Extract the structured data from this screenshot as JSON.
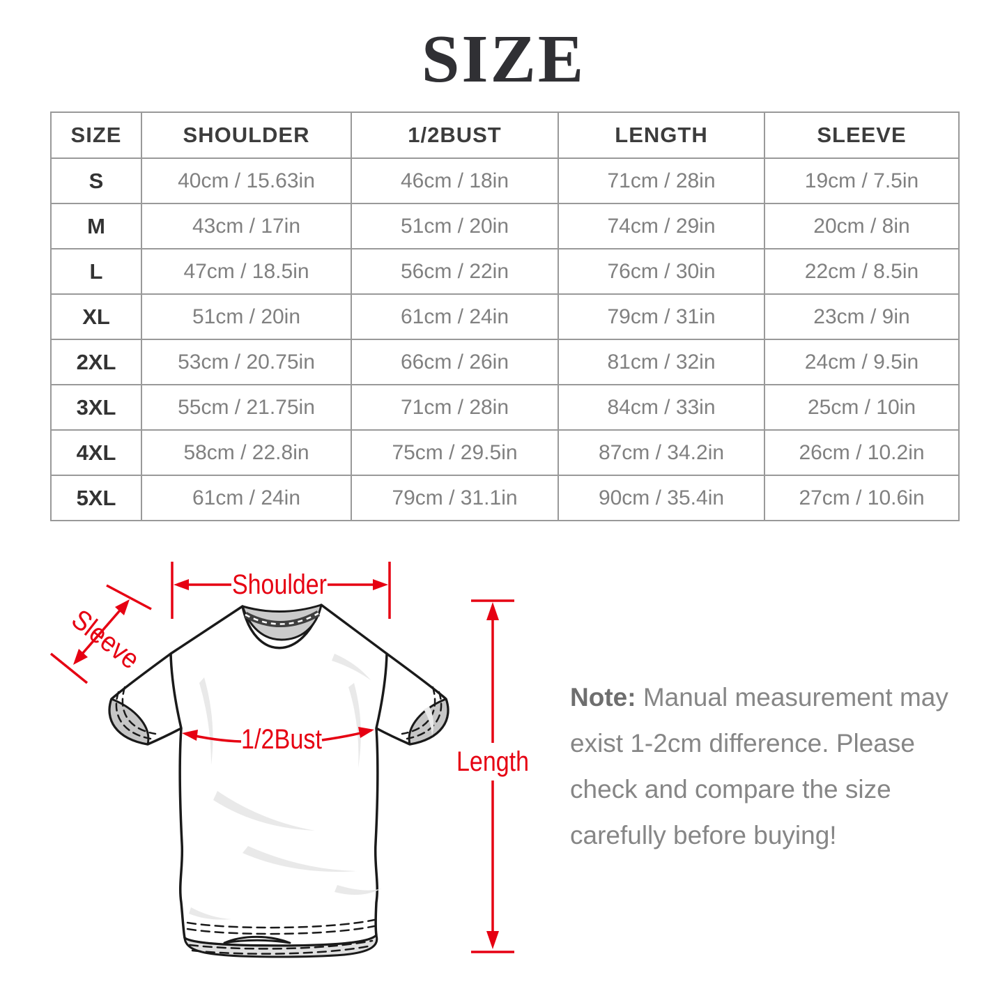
{
  "page": {
    "title": "SIZE"
  },
  "table": {
    "headers": [
      "SIZE",
      "SHOULDER",
      "1/2BUST",
      "LENGTH",
      "SLEEVE"
    ],
    "rows": [
      [
        "S",
        "40cm / 15.63in",
        "46cm / 18in",
        "71cm / 28in",
        "19cm / 7.5in"
      ],
      [
        "M",
        "43cm / 17in",
        "51cm / 20in",
        "74cm / 29in",
        "20cm / 8in"
      ],
      [
        "L",
        "47cm / 18.5in",
        "56cm / 22in",
        "76cm / 30in",
        "22cm / 8.5in"
      ],
      [
        "XL",
        "51cm / 20in",
        "61cm / 24in",
        "79cm / 31in",
        "23cm / 9in"
      ],
      [
        "2XL",
        "53cm / 20.75in",
        "66cm / 26in",
        "81cm / 32in",
        "24cm / 9.5in"
      ],
      [
        "3XL",
        "55cm / 21.75in",
        "71cm / 28in",
        "84cm / 33in",
        "25cm / 10in"
      ],
      [
        "4XL",
        "58cm / 22.8in",
        "75cm / 29.5in",
        "87cm / 34.2in",
        "26cm / 10.2in"
      ],
      [
        "5XL",
        "61cm / 24in",
        "79cm / 31.1in",
        "90cm / 35.4in",
        "27cm / 10.6in"
      ]
    ]
  },
  "diagram": {
    "labels": {
      "shoulder": "Shoulder",
      "sleeve": "Sleeve",
      "bust": "1/2Bust",
      "length": "Length"
    },
    "accent_color": "#e60012"
  },
  "note": {
    "label": "Note:",
    "line1_rest": " Manual measurement may",
    "line2": "exist 1-2cm difference. Please",
    "line3": "check and compare the size",
    "line4": "carefully before buying!"
  }
}
